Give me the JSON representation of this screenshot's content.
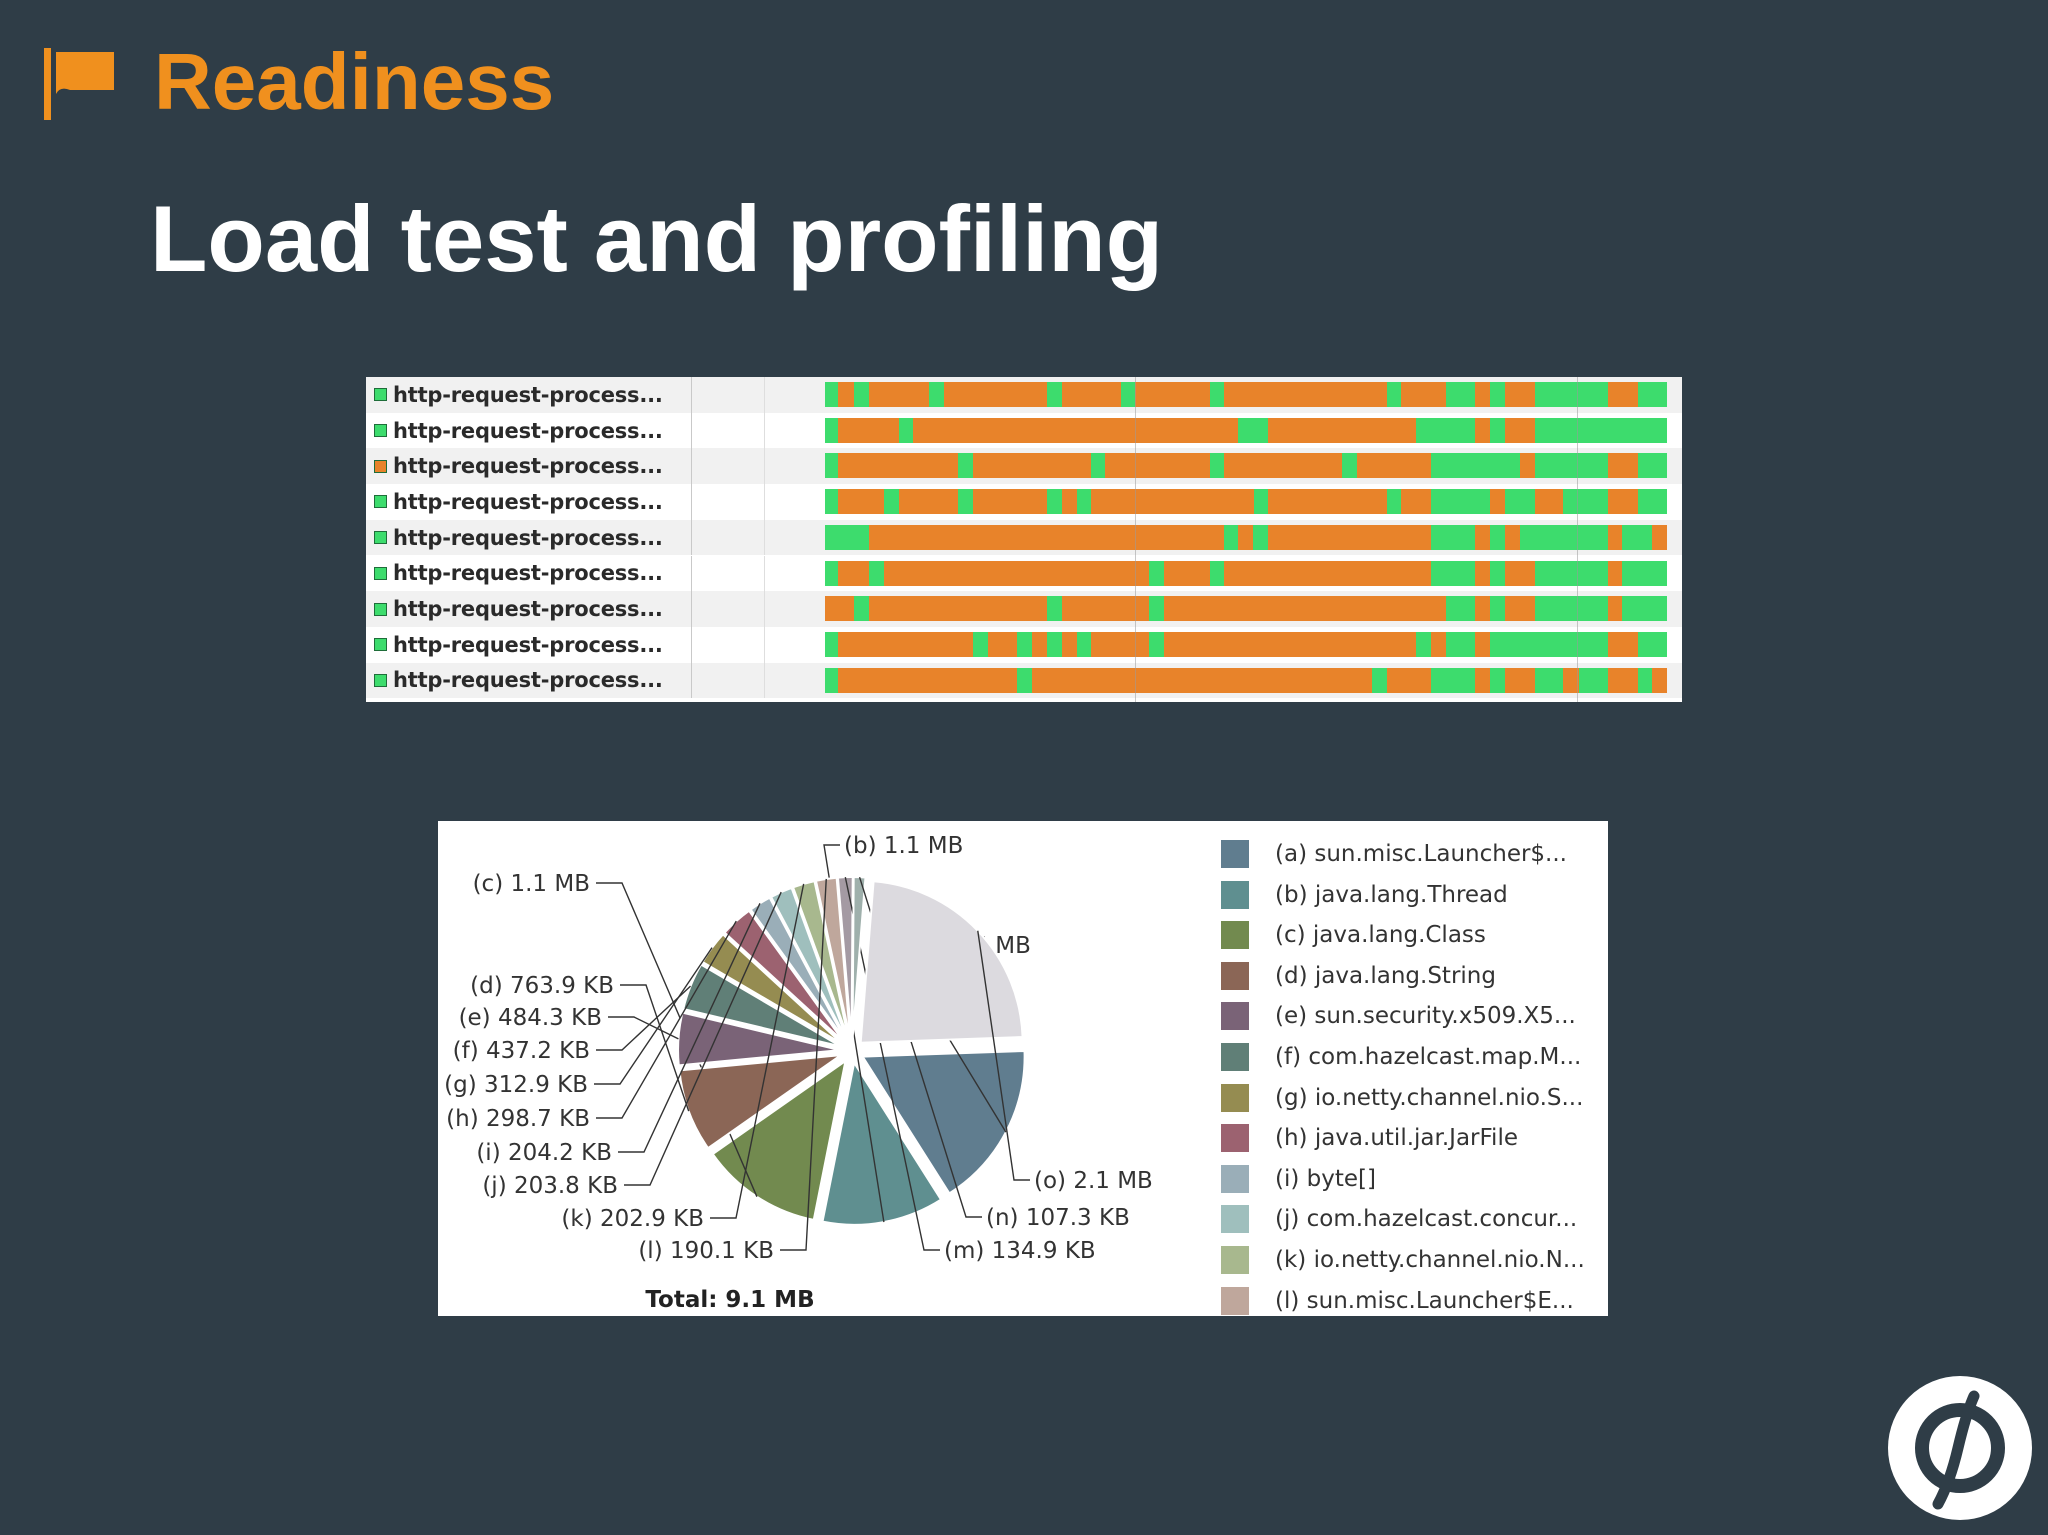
{
  "header": {
    "section": "Readiness",
    "flag_icon": "flag-icon",
    "accent_color": "#f0901e"
  },
  "title": "Load test and profiling",
  "threads": {
    "state_colors": {
      "running": "#3ddc6d",
      "blocked": "#e8832a"
    },
    "rows": [
      {
        "name": "http-request-process...",
        "state": "running",
        "segments": [
          [
            "running",
            0,
            0.016
          ],
          [
            "blocked",
            0.016,
            0.034
          ],
          [
            "running",
            0.034,
            0.052
          ],
          [
            "blocked",
            0.052,
            0.124
          ],
          [
            "running",
            0.124,
            0.141
          ],
          [
            "blocked",
            0.141,
            0.264
          ],
          [
            "running",
            0.264,
            0.282
          ],
          [
            "blocked",
            0.282,
            0.351
          ],
          [
            "running",
            0.351,
            0.368
          ],
          [
            "blocked",
            0.368,
            0.457
          ],
          [
            "running",
            0.457,
            0.474
          ],
          [
            "blocked",
            0.474,
            0.667
          ],
          [
            "running",
            0.667,
            0.684
          ],
          [
            "blocked",
            0.684,
            0.737
          ],
          [
            "running",
            0.737,
            0.772
          ],
          [
            "blocked",
            0.772,
            0.79
          ],
          [
            "running",
            0.79,
            0.808
          ],
          [
            "blocked",
            0.808,
            0.843
          ],
          [
            "running",
            0.843,
            0.93
          ],
          [
            "blocked",
            0.93,
            0.965
          ],
          [
            "running",
            0.965,
            1
          ]
        ]
      },
      {
        "name": "http-request-process...",
        "state": "running",
        "segments": [
          [
            "running",
            0,
            0.016
          ],
          [
            "blocked",
            0.016,
            0.088
          ],
          [
            "running",
            0.088,
            0.105
          ],
          [
            "blocked",
            0.105,
            0.49
          ],
          [
            "running",
            0.49,
            0.526
          ],
          [
            "blocked",
            0.526,
            0.702
          ],
          [
            "running",
            0.702,
            0.772
          ],
          [
            "blocked",
            0.772,
            0.79
          ],
          [
            "running",
            0.79,
            0.808
          ],
          [
            "blocked",
            0.808,
            0.843
          ],
          [
            "running",
            0.843,
            1
          ]
        ]
      },
      {
        "name": "http-request-process...",
        "state": "blocked",
        "segments": [
          [
            "running",
            0,
            0.016
          ],
          [
            "blocked",
            0.016,
            0.158
          ],
          [
            "running",
            0.158,
            0.176
          ],
          [
            "blocked",
            0.176,
            0.316
          ],
          [
            "running",
            0.316,
            0.333
          ],
          [
            "blocked",
            0.333,
            0.457
          ],
          [
            "running",
            0.457,
            0.474
          ],
          [
            "blocked",
            0.474,
            0.614
          ],
          [
            "running",
            0.614,
            0.632
          ],
          [
            "blocked",
            0.632,
            0.72
          ],
          [
            "running",
            0.72,
            0.825
          ],
          [
            "blocked",
            0.825,
            0.843
          ],
          [
            "running",
            0.843,
            0.93
          ],
          [
            "blocked",
            0.93,
            0.965
          ],
          [
            "running",
            0.965,
            1
          ]
        ]
      },
      {
        "name": "http-request-process...",
        "state": "running",
        "segments": [
          [
            "running",
            0,
            0.016
          ],
          [
            "blocked",
            0.016,
            0.07
          ],
          [
            "running",
            0.07,
            0.088
          ],
          [
            "blocked",
            0.088,
            0.158
          ],
          [
            "running",
            0.158,
            0.176
          ],
          [
            "blocked",
            0.176,
            0.264
          ],
          [
            "running",
            0.264,
            0.282
          ],
          [
            "blocked",
            0.282,
            0.299
          ],
          [
            "running",
            0.299,
            0.316
          ],
          [
            "blocked",
            0.316,
            0.51
          ],
          [
            "running",
            0.51,
            0.526
          ],
          [
            "blocked",
            0.526,
            0.667
          ],
          [
            "running",
            0.667,
            0.684
          ],
          [
            "blocked",
            0.684,
            0.72
          ],
          [
            "running",
            0.72,
            0.79
          ],
          [
            "blocked",
            0.79,
            0.808
          ],
          [
            "running",
            0.808,
            0.843
          ],
          [
            "blocked",
            0.843,
            0.877
          ],
          [
            "running",
            0.877,
            0.93
          ],
          [
            "blocked",
            0.93,
            0.965
          ],
          [
            "running",
            0.965,
            1
          ]
        ]
      },
      {
        "name": "http-request-process...",
        "state": "running",
        "segments": [
          [
            "running",
            0,
            0.052
          ],
          [
            "blocked",
            0.052,
            0.474
          ],
          [
            "running",
            0.474,
            0.49
          ],
          [
            "blocked",
            0.49,
            0.508
          ],
          [
            "running",
            0.508,
            0.526
          ],
          [
            "blocked",
            0.526,
            0.72
          ],
          [
            "running",
            0.72,
            0.772
          ],
          [
            "blocked",
            0.772,
            0.79
          ],
          [
            "running",
            0.79,
            0.808
          ],
          [
            "blocked",
            0.808,
            0.825
          ],
          [
            "running",
            0.825,
            0.93
          ],
          [
            "blocked",
            0.93,
            0.947
          ],
          [
            "running",
            0.947,
            0.982
          ],
          [
            "blocked",
            0.982,
            1
          ]
        ]
      },
      {
        "name": "http-request-process...",
        "state": "running",
        "segments": [
          [
            "running",
            0,
            0.016
          ],
          [
            "blocked",
            0.016,
            0.052
          ],
          [
            "running",
            0.052,
            0.07
          ],
          [
            "blocked",
            0.07,
            0.385
          ],
          [
            "running",
            0.385,
            0.403
          ],
          [
            "blocked",
            0.403,
            0.457
          ],
          [
            "running",
            0.457,
            0.474
          ],
          [
            "blocked",
            0.474,
            0.72
          ],
          [
            "running",
            0.72,
            0.772
          ],
          [
            "blocked",
            0.772,
            0.79
          ],
          [
            "running",
            0.79,
            0.808
          ],
          [
            "blocked",
            0.808,
            0.843
          ],
          [
            "running",
            0.843,
            0.93
          ],
          [
            "blocked",
            0.93,
            0.947
          ],
          [
            "running",
            0.947,
            1
          ]
        ]
      },
      {
        "name": "http-request-process...",
        "state": "running",
        "segments": [
          [
            "blocked",
            0,
            0.034
          ],
          [
            "running",
            0.034,
            0.052
          ],
          [
            "blocked",
            0.052,
            0.264
          ],
          [
            "running",
            0.264,
            0.282
          ],
          [
            "blocked",
            0.282,
            0.385
          ],
          [
            "running",
            0.385,
            0.403
          ],
          [
            "blocked",
            0.403,
            0.737
          ],
          [
            "running",
            0.737,
            0.772
          ],
          [
            "blocked",
            0.772,
            0.79
          ],
          [
            "running",
            0.79,
            0.808
          ],
          [
            "blocked",
            0.808,
            0.843
          ],
          [
            "running",
            0.843,
            0.93
          ],
          [
            "blocked",
            0.93,
            0.947
          ],
          [
            "running",
            0.947,
            1
          ]
        ]
      },
      {
        "name": "http-request-process...",
        "state": "running",
        "segments": [
          [
            "running",
            0,
            0.016
          ],
          [
            "blocked",
            0.016,
            0.176
          ],
          [
            "running",
            0.176,
            0.194
          ],
          [
            "blocked",
            0.194,
            0.228
          ],
          [
            "running",
            0.228,
            0.246
          ],
          [
            "blocked",
            0.246,
            0.264
          ],
          [
            "running",
            0.264,
            0.282
          ],
          [
            "blocked",
            0.282,
            0.299
          ],
          [
            "running",
            0.299,
            0.316
          ],
          [
            "blocked",
            0.316,
            0.385
          ],
          [
            "running",
            0.385,
            0.403
          ],
          [
            "blocked",
            0.403,
            0.702
          ],
          [
            "running",
            0.702,
            0.72
          ],
          [
            "blocked",
            0.72,
            0.737
          ],
          [
            "running",
            0.737,
            0.772
          ],
          [
            "blocked",
            0.772,
            0.79
          ],
          [
            "running",
            0.79,
            0.93
          ],
          [
            "blocked",
            0.93,
            0.965
          ],
          [
            "running",
            0.965,
            1
          ]
        ]
      },
      {
        "name": "http-request-process...",
        "state": "running",
        "segments": [
          [
            "running",
            0,
            0.016
          ],
          [
            "blocked",
            0.016,
            0.228
          ],
          [
            "running",
            0.228,
            0.246
          ],
          [
            "blocked",
            0.246,
            0.65
          ],
          [
            "running",
            0.65,
            0.667
          ],
          [
            "blocked",
            0.667,
            0.72
          ],
          [
            "running",
            0.72,
            0.772
          ],
          [
            "blocked",
            0.772,
            0.79
          ],
          [
            "running",
            0.79,
            0.808
          ],
          [
            "blocked",
            0.808,
            0.843
          ],
          [
            "running",
            0.843,
            0.877
          ],
          [
            "blocked",
            0.877,
            0.895
          ],
          [
            "running",
            0.895,
            0.93
          ],
          [
            "blocked",
            0.93,
            0.965
          ],
          [
            "running",
            0.965,
            0.982
          ],
          [
            "blocked",
            0.982,
            1
          ]
        ]
      }
    ]
  },
  "chart_data": {
    "type": "pie",
    "total_label": "Total:",
    "total": "9.1 MB",
    "slices": [
      {
        "key": "(a)",
        "value": 1536,
        "label": "1.5 MB",
        "name": "sun.misc.Launcher$...",
        "color": "#607d8f"
      },
      {
        "key": "(b)",
        "value": 1126,
        "label": "1.1 MB",
        "name": "java.lang.Thread",
        "color": "#5f8f90"
      },
      {
        "key": "(c)",
        "value": 1126,
        "label": "1.1 MB",
        "name": "java.lang.Class",
        "color": "#728a4f"
      },
      {
        "key": "(d)",
        "value": 763.9,
        "label": "763.9 KB",
        "name": "java.lang.String",
        "color": "#8b6656"
      },
      {
        "key": "(e)",
        "value": 484.3,
        "label": "484.3 KB",
        "name": "sun.security.x509.X5...",
        "color": "#7a6377"
      },
      {
        "key": "(f)",
        "value": 437.2,
        "label": "437.2 KB",
        "name": "com.hazelcast.map.M...",
        "color": "#607f77"
      },
      {
        "key": "(g)",
        "value": 312.9,
        "label": "312.9 KB",
        "name": "io.netty.channel.nio.S...",
        "color": "#958c51"
      },
      {
        "key": "(h)",
        "value": 298.7,
        "label": "298.7 KB",
        "name": "java.util.jar.JarFile",
        "color": "#9c6270"
      },
      {
        "key": "(i)",
        "value": 204.2,
        "label": "204.2 KB",
        "name": "byte[]",
        "color": "#9aaeb8"
      },
      {
        "key": "(j)",
        "value": 203.8,
        "label": "203.8 KB",
        "name": "com.hazelcast.concur...",
        "color": "#9fbfbd"
      },
      {
        "key": "(k)",
        "value": 202.9,
        "label": "202.9 KB",
        "name": "io.netty.channel.nio.N...",
        "color": "#a8b88e"
      },
      {
        "key": "(l)",
        "value": 190.1,
        "label": "190.1 KB",
        "name": "sun.misc.Launcher$E...",
        "color": "#bfa79c"
      },
      {
        "key": "(m)",
        "value": 134.9,
        "label": "134.9 KB",
        "name": "",
        "color": "#a49aa3"
      },
      {
        "key": "(n)",
        "value": 107.3,
        "label": "107.3 KB",
        "name": "",
        "color": "#9fb0ac"
      },
      {
        "key": "(o)",
        "value": 2150,
        "label": "2.1 MB",
        "name": "",
        "color": "#dcdadf"
      }
    ],
    "legend_count": 12
  },
  "logo_icon": "phi-logo-icon"
}
